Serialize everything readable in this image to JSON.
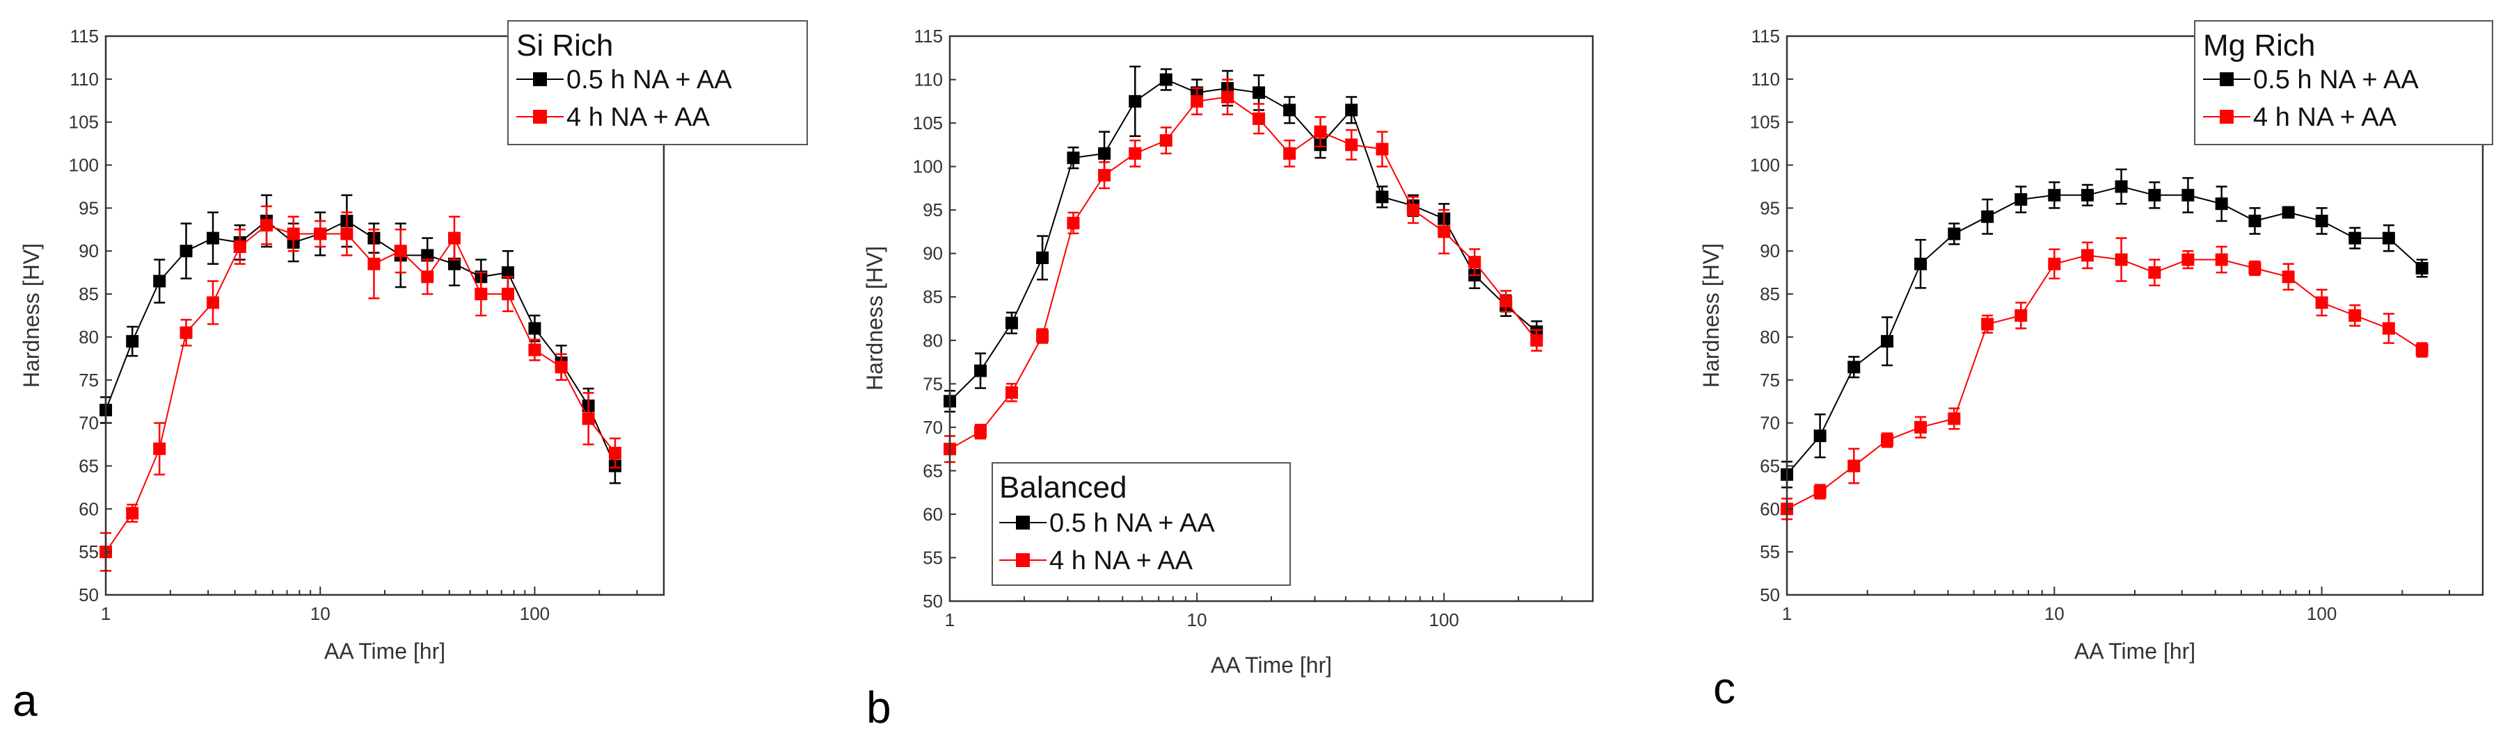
{
  "colors": {
    "series_a": "#000000",
    "series_b": "#ff0000",
    "axis": "#333333"
  },
  "chart_data": [
    {
      "type": "line",
      "panel_label": "a",
      "legend_title": "Si Rich",
      "legend_placement": "top-right",
      "xlabel": "AA Time [hr]",
      "ylabel": "Hardness [HV]",
      "xscale": "log",
      "xlim": [
        1,
        400
      ],
      "ylim": [
        50,
        115
      ],
      "xticks": [
        1,
        10,
        100
      ],
      "xtick_labels": [
        "1",
        "10",
        "100"
      ],
      "yticks": [
        50,
        55,
        60,
        65,
        70,
        75,
        80,
        85,
        90,
        95,
        100,
        105,
        110,
        115
      ],
      "ytick_labels": [
        "50",
        "55",
        "60",
        "65",
        "70",
        "75",
        "80",
        "85",
        "90",
        "95",
        "100",
        "105",
        "110",
        "115"
      ],
      "grid": false,
      "x": [
        1,
        1.33,
        1.78,
        2.37,
        3.16,
        4.22,
        5.62,
        7.5,
        10,
        13.3,
        17.8,
        23.7,
        31.6,
        42.2,
        56.2,
        75,
        100,
        133,
        178,
        237,
        316
      ],
      "series": [
        {
          "name": "0.5 h NA + AA",
          "color": "#000000",
          "values": [
            71.5,
            79.5,
            86.5,
            90,
            91.5,
            91,
            93.5,
            91,
            92,
            93.5,
            91.5,
            89.5,
            89.5,
            88.5,
            87,
            87.5,
            81,
            77,
            72,
            65,
            null
          ],
          "errors": [
            1.5,
            1.7,
            2.5,
            3.2,
            3.0,
            2.0,
            3.0,
            2.2,
            2.5,
            3.0,
            1.7,
            3.7,
            2.0,
            2.5,
            2.0,
            2.5,
            1.5,
            2.0,
            2.0,
            2.0,
            null
          ]
        },
        {
          "name": "4 h NA + AA",
          "color": "#ff0000",
          "values": [
            55,
            59.5,
            67,
            80.5,
            84,
            90.5,
            93,
            92,
            92,
            92,
            88.5,
            90,
            87,
            91.5,
            85,
            85,
            78.5,
            76.5,
            70.5,
            66.5,
            null
          ],
          "errors": [
            2.2,
            1.0,
            3.0,
            1.5,
            2.5,
            2.0,
            2.2,
            2.0,
            1.5,
            2.5,
            4.0,
            2.5,
            2.0,
            2.5,
            2.5,
            2.0,
            1.2,
            1.5,
            3.0,
            1.7,
            null
          ]
        }
      ]
    },
    {
      "type": "line",
      "panel_label": "b",
      "legend_title": "Balanced",
      "legend_placement": "bottom-left",
      "xlabel": "AA Time [hr]",
      "ylabel": "Hardness [HV]",
      "xscale": "log",
      "xlim": [
        1,
        400
      ],
      "ylim": [
        50,
        115
      ],
      "xticks": [
        1,
        10,
        100
      ],
      "xtick_labels": [
        "1",
        "10",
        "100"
      ],
      "yticks": [
        50,
        55,
        60,
        65,
        70,
        75,
        80,
        85,
        90,
        95,
        100,
        105,
        110,
        115
      ],
      "ytick_labels": [
        "50",
        "55",
        "60",
        "65",
        "70",
        "75",
        "80",
        "85",
        "90",
        "95",
        "100",
        "105",
        "110",
        "115"
      ],
      "grid": false,
      "x": [
        1,
        1.33,
        1.78,
        2.37,
        3.16,
        4.22,
        5.62,
        7.5,
        10,
        13.3,
        17.8,
        23.7,
        31.6,
        42.2,
        56.2,
        75,
        100,
        133,
        178,
        237,
        316
      ],
      "series": [
        {
          "name": "0.5 h NA + AA",
          "color": "#000000",
          "values": [
            73,
            76.5,
            82,
            89.5,
            101,
            101.5,
            107.5,
            110,
            108.5,
            109,
            108.5,
            106.5,
            102.5,
            106.5,
            96.5,
            95.5,
            94,
            87.5,
            84,
            81,
            null
          ],
          "errors": [
            1.2,
            2.0,
            1.2,
            2.5,
            1.2,
            2.5,
            4.0,
            1.2,
            1.5,
            2.0,
            2.0,
            1.5,
            1.5,
            1.5,
            1.2,
            1.2,
            1.7,
            1.5,
            1.2,
            1.2,
            null
          ]
        },
        {
          "name": "4 h NA + AA",
          "color": "#ff0000",
          "values": [
            67.5,
            69.5,
            74,
            80.5,
            93.5,
            99,
            101.5,
            103,
            107.5,
            108,
            105.5,
            101.5,
            104,
            102.5,
            102,
            95,
            92.5,
            89,
            84.5,
            80,
            null
          ],
          "errors": [
            1.5,
            0.8,
            1.0,
            0.8,
            1.2,
            1.5,
            1.5,
            1.5,
            1.5,
            2.0,
            1.7,
            1.5,
            1.7,
            1.7,
            2.0,
            1.5,
            2.5,
            1.5,
            1.2,
            1.2,
            null
          ]
        }
      ]
    },
    {
      "type": "line",
      "panel_label": "c",
      "legend_title": "Mg Rich",
      "legend_placement": "top-right",
      "xlabel": "AA Time [hr]",
      "ylabel": "Hardness [HV]",
      "xscale": "log",
      "xlim": [
        1,
        400
      ],
      "ylim": [
        50,
        115
      ],
      "xticks": [
        1,
        10,
        100
      ],
      "xtick_labels": [
        "1",
        "10",
        "100"
      ],
      "yticks": [
        50,
        55,
        60,
        65,
        70,
        75,
        80,
        85,
        90,
        95,
        100,
        105,
        110,
        115
      ],
      "ytick_labels": [
        "50",
        "55",
        "60",
        "65",
        "70",
        "75",
        "80",
        "85",
        "90",
        "95",
        "100",
        "105",
        "110",
        "115"
      ],
      "grid": false,
      "x": [
        1,
        1.33,
        1.78,
        2.37,
        3.16,
        4.22,
        5.62,
        7.5,
        10,
        13.3,
        17.8,
        23.7,
        31.6,
        42.2,
        56.2,
        75,
        100,
        133,
        178,
        237,
        316
      ],
      "series": [
        {
          "name": "0.5 h NA + AA",
          "color": "#000000",
          "values": [
            64,
            68.5,
            76.5,
            79.5,
            88.5,
            92,
            94,
            96,
            96.5,
            96.5,
            97.5,
            96.5,
            96.5,
            95.5,
            93.5,
            94.5,
            93.5,
            91.5,
            91.5,
            88,
            null
          ],
          "errors": [
            1.5,
            2.5,
            1.2,
            2.8,
            2.8,
            1.2,
            2.0,
            1.5,
            1.5,
            1.2,
            2.0,
            1.5,
            2.0,
            2.0,
            1.5,
            0.5,
            1.5,
            1.2,
            1.5,
            1.0,
            null
          ]
        },
        {
          "name": "4 h NA + AA",
          "color": "#ff0000",
          "values": [
            60,
            62,
            65,
            68,
            69.5,
            70.5,
            81.5,
            82.5,
            88.5,
            89.5,
            89,
            87.5,
            89,
            89,
            88,
            87,
            84,
            82.5,
            81,
            78.5,
            null
          ],
          "errors": [
            1.2,
            0.8,
            2.0,
            0.8,
            1.2,
            1.2,
            1.0,
            1.5,
            1.7,
            1.5,
            2.5,
            1.5,
            1.0,
            1.5,
            0.8,
            1.5,
            1.5,
            1.2,
            1.7,
            0.8,
            null
          ]
        }
      ]
    }
  ]
}
